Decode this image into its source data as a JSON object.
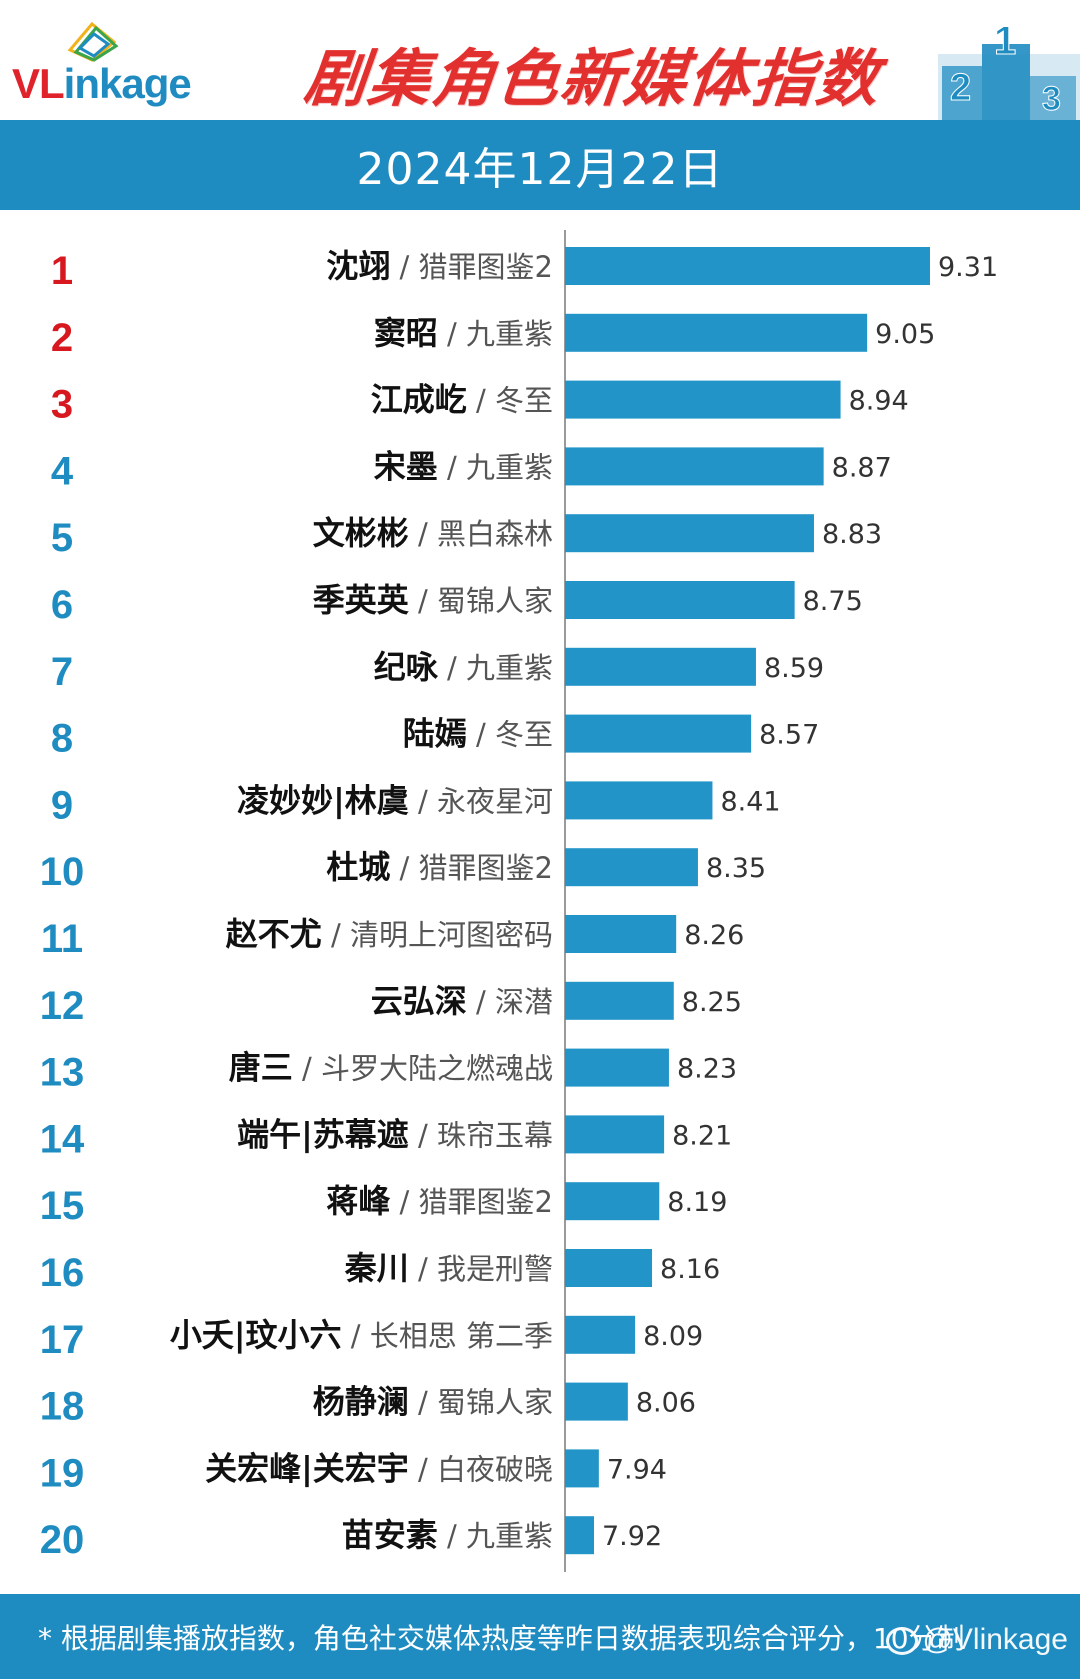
{
  "header": {
    "logo_text_red": "VL",
    "logo_text_blue": "inkage",
    "title": "剧集角色新媒体指数",
    "podium_ranks": [
      "2",
      "1",
      "3"
    ]
  },
  "date": "2024年12月22日",
  "colors": {
    "brand_blue": "#1f8cc1",
    "bar_blue": "#2294c8",
    "title_red": "#e2302f",
    "rank_red": "#d7191f",
    "rank_blue": "#1f8cc1"
  },
  "chart_data": {
    "type": "bar",
    "orientation": "horizontal",
    "title": "剧集角色新媒体指数",
    "subtitle": "2024年12月22日",
    "xlim": [
      7.8,
      9.31
    ],
    "rows": [
      {
        "rank": "1",
        "name": "沈翊",
        "drama": "猎罪图鉴2",
        "value": 9.31,
        "label": "9.31"
      },
      {
        "rank": "2",
        "name": "窦昭",
        "drama": "九重紫",
        "value": 9.05,
        "label": "9.05"
      },
      {
        "rank": "3",
        "name": "江成屹",
        "drama": "冬至",
        "value": 8.94,
        "label": "8.94"
      },
      {
        "rank": "4",
        "name": "宋墨",
        "drama": "九重紫",
        "value": 8.87,
        "label": "8.87"
      },
      {
        "rank": "5",
        "name": "文彬彬",
        "drama": "黑白森林",
        "value": 8.83,
        "label": "8.83"
      },
      {
        "rank": "6",
        "name": "季英英",
        "drama": "蜀锦人家",
        "value": 8.75,
        "label": "8.75"
      },
      {
        "rank": "7",
        "name": "纪咏",
        "drama": "九重紫",
        "value": 8.59,
        "label": "8.59"
      },
      {
        "rank": "8",
        "name": "陆嫣",
        "drama": "冬至",
        "value": 8.57,
        "label": "8.57"
      },
      {
        "rank": "9",
        "name": "凌妙妙|林虞",
        "drama": "永夜星河",
        "value": 8.41,
        "label": "8.41"
      },
      {
        "rank": "10",
        "name": "杜城",
        "drama": "猎罪图鉴2",
        "value": 8.35,
        "label": "8.35"
      },
      {
        "rank": "11",
        "name": "赵不尤",
        "drama": "清明上河图密码",
        "value": 8.26,
        "label": "8.26"
      },
      {
        "rank": "12",
        "name": "云弘深",
        "drama": "深潜",
        "value": 8.25,
        "label": "8.25"
      },
      {
        "rank": "13",
        "name": "唐三",
        "drama": "斗罗大陆之燃魂战",
        "value": 8.23,
        "label": "8.23"
      },
      {
        "rank": "14",
        "name": "端午|苏幕遮",
        "drama": "珠帘玉幕",
        "value": 8.21,
        "label": "8.21"
      },
      {
        "rank": "15",
        "name": "蒋峰",
        "drama": "猎罪图鉴2",
        "value": 8.19,
        "label": "8.19"
      },
      {
        "rank": "16",
        "name": "秦川",
        "drama": "我是刑警",
        "value": 8.16,
        "label": "8.16"
      },
      {
        "rank": "17",
        "name": "小夭|玟小六",
        "drama": "长相思 第二季",
        "value": 8.09,
        "label": "8.09"
      },
      {
        "rank": "18",
        "name": "杨静澜",
        "drama": "蜀锦人家",
        "value": 8.06,
        "label": "8.06"
      },
      {
        "rank": "19",
        "name": "关宏峰|关宏宇",
        "drama": "白夜破晓",
        "value": 7.94,
        "label": "7.94"
      },
      {
        "rank": "20",
        "name": "苗安素",
        "drama": "九重紫",
        "value": 7.92,
        "label": "7.92"
      }
    ],
    "separator": " / "
  },
  "footer": {
    "note": "* 根据剧集播放指数，角色社交媒体热度等昨日数据表现综合评分，10分制",
    "watermark": "@Vlinkage"
  }
}
